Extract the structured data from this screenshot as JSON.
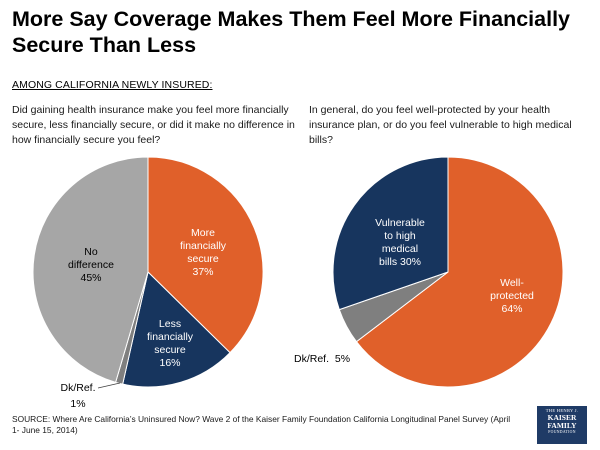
{
  "title": "More Say Coverage Makes Them Feel More Financially Secure Than Less",
  "subhead": "AMONG CALIFORNIA NEWLY INSURED:",
  "colors": {
    "orange": "#e0602a",
    "navy": "#17355e",
    "light_gray": "#a6a6a6",
    "dark_gray": "#7f7f7f"
  },
  "chart_data": [
    {
      "type": "pie",
      "question": "Did gaining health insurance make you feel more financially secure, less financially secure, or did it make no difference in how financially secure you feel?",
      "slices": [
        {
          "label": "More financially secure",
          "value": 37,
          "color": "#e0602a",
          "label_lines": [
            "More",
            "financially",
            "secure"
          ],
          "pct_text": "37%"
        },
        {
          "label": "Less financially secure",
          "value": 16,
          "color": "#17355e",
          "label_lines": [
            "Less",
            "financially",
            "secure"
          ],
          "pct_text": "16%"
        },
        {
          "label": "Dk/Ref.",
          "value": 1,
          "color": "#7f7f7f",
          "label_lines": [
            "Dk/Ref."
          ],
          "pct_text": "1%"
        },
        {
          "label": "No difference",
          "value": 45,
          "color": "#a6a6a6",
          "label_lines": [
            "No",
            "difference"
          ],
          "pct_text": "45%"
        }
      ]
    },
    {
      "type": "pie",
      "question": "In general, do you feel well-protected by your health insurance plan, or do you feel vulnerable to high medical bills?",
      "slices": [
        {
          "label": "Well-protected",
          "value": 64,
          "color": "#e0602a",
          "label_lines": [
            "Well-",
            "protected"
          ],
          "pct_text": "64%"
        },
        {
          "label": "Dk/Ref.",
          "value": 5,
          "color": "#7f7f7f",
          "label_lines": [
            "Dk/Ref."
          ],
          "pct_text": "5%"
        },
        {
          "label": "Vulnerable to high medical bills",
          "value": 30,
          "color": "#17355e",
          "label_lines": [
            "Vulnerable",
            "to high",
            "medical",
            "bills"
          ],
          "pct_text": "30%"
        }
      ]
    }
  ],
  "source": "SOURCE: Where Are California’s Uninsured Now? Wave 2 of the Kaiser Family Foundation California Longitudinal Panel Survey (April 1- June 15, 2014)",
  "logo": {
    "line1": "THE HENRY J.",
    "line2": "KAISER",
    "line3": "FAMILY",
    "line4": "FOUNDATION"
  }
}
